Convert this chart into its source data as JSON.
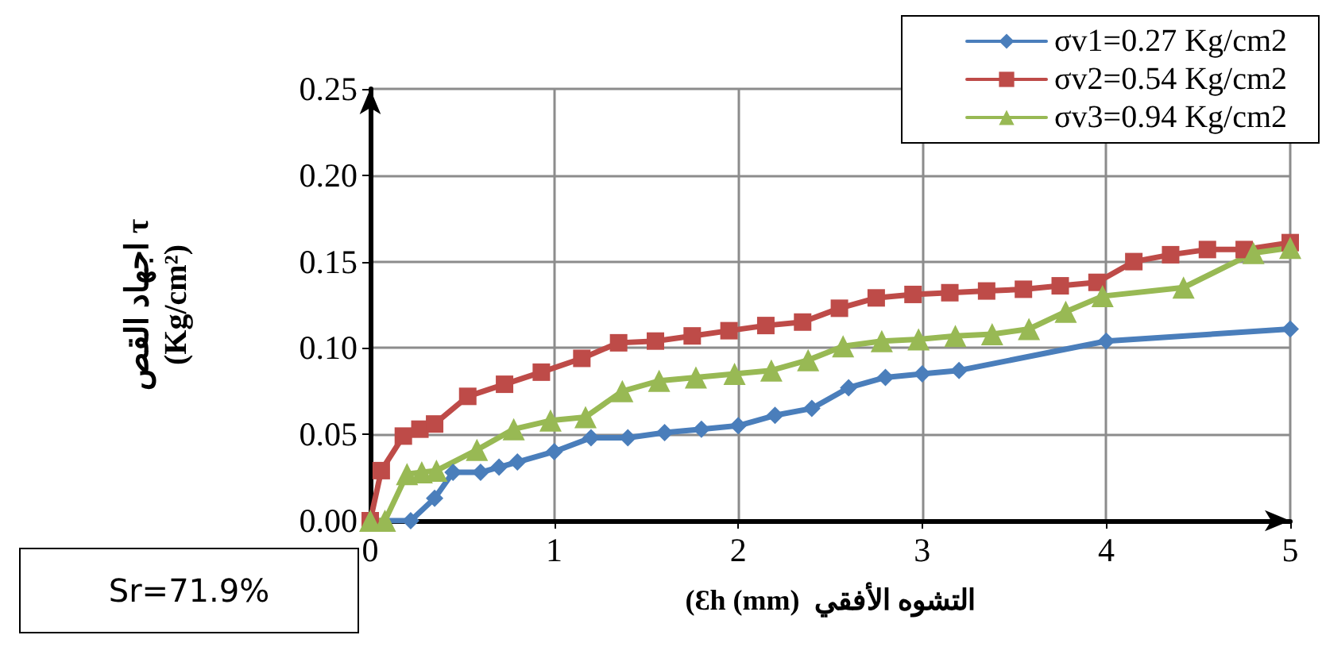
{
  "chart_data": {
    "type": "line",
    "xlabel": "(Ɛh (mm)  التشوه الأفقي",
    "ylabel": "اجهاد القص τ\n(Kg/cm²)",
    "annotations": [
      "Sr=71.9%"
    ],
    "xlim": [
      0,
      5
    ],
    "xticks": [
      0,
      1,
      2,
      3,
      4,
      5
    ],
    "ylim": [
      0,
      0.25
    ],
    "yticks": [
      {
        "value": 0,
        "label": "0.00"
      },
      {
        "value": 0.05,
        "label": "0.05"
      },
      {
        "value": 0.1,
        "label": "0.10"
      },
      {
        "value": 0.15,
        "label": "0.15"
      },
      {
        "value": 0.2,
        "label": "0.20"
      },
      {
        "value": 0.25,
        "label": "0.25"
      }
    ],
    "grid": true,
    "legend": "top right",
    "line_style": "solid",
    "series": [
      {
        "name": "σv1=0.27 Kg/cm2",
        "color": "#4a7ebb",
        "marker": "diamond",
        "x": [
          0,
          0.22,
          0.35,
          0.45,
          0.6,
          0.7,
          0.8,
          1.0,
          1.2,
          1.4,
          1.6,
          1.8,
          2.0,
          2.2,
          2.4,
          2.6,
          2.8,
          3.0,
          3.2,
          4.0,
          5.0
        ],
        "values": [
          0,
          0,
          0.013,
          0.028,
          0.028,
          0.031,
          0.034,
          0.04,
          0.048,
          0.048,
          0.051,
          0.053,
          0.055,
          0.061,
          0.065,
          0.077,
          0.083,
          0.085,
          0.087,
          0.104,
          0.111
        ]
      },
      {
        "name": "σv2=0.54 Kg/cm2",
        "color": "#be4b48",
        "marker": "square",
        "x": [
          0,
          0.06,
          0.18,
          0.27,
          0.35,
          0.53,
          0.73,
          0.93,
          1.15,
          1.35,
          1.55,
          1.75,
          1.95,
          2.15,
          2.35,
          2.55,
          2.75,
          2.95,
          3.15,
          3.35,
          3.55,
          3.75,
          3.95,
          4.15,
          4.35,
          4.55,
          4.75,
          5.0
        ],
        "values": [
          0,
          0.029,
          0.049,
          0.053,
          0.056,
          0.072,
          0.079,
          0.086,
          0.094,
          0.103,
          0.104,
          0.107,
          0.11,
          0.113,
          0.115,
          0.123,
          0.129,
          0.131,
          0.132,
          0.133,
          0.134,
          0.136,
          0.138,
          0.15,
          0.154,
          0.157,
          0.157,
          0.161
        ]
      },
      {
        "name": "σv3=0.94 Kg/cm2",
        "color": "#98b954",
        "marker": "triangle",
        "x": [
          0,
          0.08,
          0.2,
          0.28,
          0.36,
          0.58,
          0.78,
          0.98,
          1.17,
          1.37,
          1.57,
          1.77,
          1.98,
          2.18,
          2.38,
          2.57,
          2.78,
          2.98,
          3.18,
          3.38,
          3.58,
          3.78,
          3.98,
          4.42,
          4.8,
          5.0
        ],
        "values": [
          0,
          0,
          0.027,
          0.028,
          0.029,
          0.041,
          0.053,
          0.058,
          0.06,
          0.075,
          0.081,
          0.083,
          0.085,
          0.087,
          0.093,
          0.101,
          0.104,
          0.105,
          0.107,
          0.108,
          0.111,
          0.121,
          0.13,
          0.135,
          0.155,
          0.158
        ]
      }
    ]
  }
}
